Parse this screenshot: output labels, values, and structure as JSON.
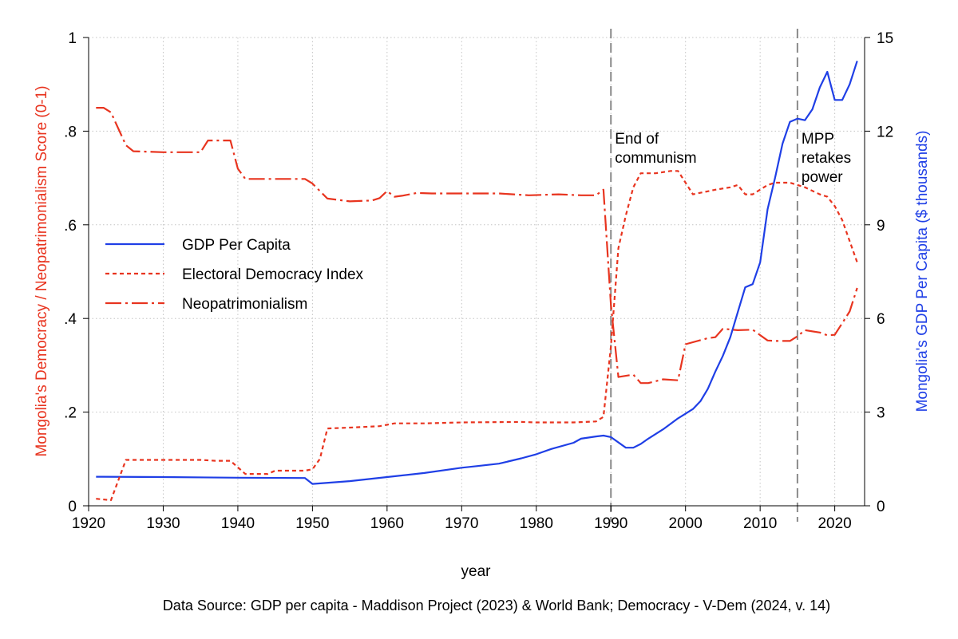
{
  "colors": {
    "gdp": "#1f3fe6",
    "democracy": "#e8341f",
    "neo": "#e8341f",
    "grid": "#c4c4c4",
    "vline": "#8a8a8a",
    "axis": "#000000"
  },
  "chart_data": {
    "type": "line",
    "xlabel": "year",
    "ylabel_left": "Mongolia's Democracy / Neopatrimonialism Score (0-1)",
    "ylabel_right": "Mongolia's GDP Per Capita ($ thousands)",
    "xlim": [
      1920,
      2024
    ],
    "ylim_left": [
      0,
      1
    ],
    "ylim_right": [
      0,
      15
    ],
    "x_ticks": [
      "1920",
      "1930",
      "1940",
      "1950",
      "1960",
      "1970",
      "1980",
      "1990",
      "2000",
      "2010",
      "2020"
    ],
    "y_left_ticks": [
      {
        "v": 0,
        "label": "0"
      },
      {
        "v": 0.2,
        "label": ".2"
      },
      {
        "v": 0.4,
        "label": ".4"
      },
      {
        "v": 0.6,
        "label": ".6"
      },
      {
        "v": 0.8,
        "label": ".8"
      },
      {
        "v": 1,
        "label": "1"
      }
    ],
    "y_right_ticks": [
      {
        "v": 0,
        "label": "0"
      },
      {
        "v": 3,
        "label": "3"
      },
      {
        "v": 6,
        "label": "6"
      },
      {
        "v": 9,
        "label": "9"
      },
      {
        "v": 12,
        "label": "12"
      },
      {
        "v": 15,
        "label": "15"
      }
    ],
    "grid": true,
    "legend_position": "middle-left",
    "annotations": [
      {
        "x": 1990,
        "lines": [
          "End of",
          "communism"
        ]
      },
      {
        "x": 2015,
        "lines": [
          "MPP",
          "retakes",
          "power"
        ]
      }
    ],
    "series": [
      {
        "name": "GDP Per Capita",
        "axis": "right",
        "style": "solid",
        "points": [
          [
            1921,
            0.93
          ],
          [
            1930,
            0.92
          ],
          [
            1940,
            0.9
          ],
          [
            1949,
            0.89
          ],
          [
            1950,
            0.7
          ],
          [
            1955,
            0.79
          ],
          [
            1960,
            0.92
          ],
          [
            1965,
            1.05
          ],
          [
            1970,
            1.22
          ],
          [
            1972,
            1.27
          ],
          [
            1975,
            1.35
          ],
          [
            1978,
            1.52
          ],
          [
            1980,
            1.65
          ],
          [
            1982,
            1.82
          ],
          [
            1985,
            2.02
          ],
          [
            1986,
            2.15
          ],
          [
            1988,
            2.22
          ],
          [
            1989,
            2.25
          ],
          [
            1990,
            2.2
          ],
          [
            1992,
            1.86
          ],
          [
            1993,
            1.86
          ],
          [
            1994,
            1.98
          ],
          [
            1995,
            2.15
          ],
          [
            1997,
            2.45
          ],
          [
            1999,
            2.8
          ],
          [
            2000,
            2.95
          ],
          [
            2001,
            3.1
          ],
          [
            2002,
            3.35
          ],
          [
            2003,
            3.75
          ],
          [
            2004,
            4.3
          ],
          [
            2005,
            4.8
          ],
          [
            2006,
            5.4
          ],
          [
            2007,
            6.2
          ],
          [
            2008,
            7.0
          ],
          [
            2009,
            7.1
          ],
          [
            2010,
            7.8
          ],
          [
            2011,
            9.5
          ],
          [
            2012,
            10.5
          ],
          [
            2013,
            11.6
          ],
          [
            2014,
            12.3
          ],
          [
            2015,
            12.4
          ],
          [
            2016,
            12.35
          ],
          [
            2017,
            12.7
          ],
          [
            2018,
            13.4
          ],
          [
            2019,
            13.9
          ],
          [
            2020,
            13.0
          ],
          [
            2021,
            13.0
          ],
          [
            2022,
            13.5
          ],
          [
            2023,
            14.25
          ]
        ]
      },
      {
        "name": "Electoral Democracy Index",
        "axis": "left",
        "style": "dashed",
        "points": [
          [
            1921,
            0.015
          ],
          [
            1923,
            0.012
          ],
          [
            1925,
            0.098
          ],
          [
            1930,
            0.098
          ],
          [
            1935,
            0.098
          ],
          [
            1937,
            0.096
          ],
          [
            1939,
            0.096
          ],
          [
            1941,
            0.068
          ],
          [
            1944,
            0.068
          ],
          [
            1945,
            0.075
          ],
          [
            1949,
            0.075
          ],
          [
            1950,
            0.078
          ],
          [
            1951,
            0.1
          ],
          [
            1952,
            0.165
          ],
          [
            1955,
            0.167
          ],
          [
            1959,
            0.17
          ],
          [
            1961,
            0.176
          ],
          [
            1965,
            0.176
          ],
          [
            1970,
            0.178
          ],
          [
            1978,
            0.179
          ],
          [
            1980,
            0.178
          ],
          [
            1985,
            0.178
          ],
          [
            1988,
            0.18
          ],
          [
            1989,
            0.19
          ],
          [
            1990,
            0.34
          ],
          [
            1991,
            0.55
          ],
          [
            1992,
            0.62
          ],
          [
            1993,
            0.68
          ],
          [
            1994,
            0.71
          ],
          [
            1996,
            0.71
          ],
          [
            1998,
            0.715
          ],
          [
            1999,
            0.715
          ],
          [
            2000,
            0.69
          ],
          [
            2001,
            0.665
          ],
          [
            2004,
            0.675
          ],
          [
            2006,
            0.68
          ],
          [
            2007,
            0.685
          ],
          [
            2008,
            0.665
          ],
          [
            2009,
            0.665
          ],
          [
            2011,
            0.685
          ],
          [
            2012,
            0.69
          ],
          [
            2014,
            0.69
          ],
          [
            2016,
            0.68
          ],
          [
            2018,
            0.665
          ],
          [
            2019,
            0.66
          ],
          [
            2020,
            0.64
          ],
          [
            2021,
            0.61
          ],
          [
            2022,
            0.565
          ],
          [
            2023,
            0.52
          ]
        ]
      },
      {
        "name": "Neopatrimonialism",
        "axis": "left",
        "style": "dashdot",
        "points": [
          [
            1921,
            0.85
          ],
          [
            1922,
            0.85
          ],
          [
            1923,
            0.84
          ],
          [
            1925,
            0.77
          ],
          [
            1926,
            0.757
          ],
          [
            1930,
            0.755
          ],
          [
            1935,
            0.755
          ],
          [
            1936,
            0.78
          ],
          [
            1939,
            0.78
          ],
          [
            1940,
            0.72
          ],
          [
            1941,
            0.698
          ],
          [
            1945,
            0.698
          ],
          [
            1949,
            0.698
          ],
          [
            1950,
            0.688
          ],
          [
            1952,
            0.656
          ],
          [
            1955,
            0.65
          ],
          [
            1958,
            0.652
          ],
          [
            1959,
            0.657
          ],
          [
            1960,
            0.672
          ],
          [
            1961,
            0.66
          ],
          [
            1962,
            0.662
          ],
          [
            1964,
            0.668
          ],
          [
            1966,
            0.667
          ],
          [
            1970,
            0.667
          ],
          [
            1975,
            0.667
          ],
          [
            1979,
            0.663
          ],
          [
            1983,
            0.665
          ],
          [
            1986,
            0.663
          ],
          [
            1988,
            0.663
          ],
          [
            1989,
            0.675
          ],
          [
            1990,
            0.43
          ],
          [
            1991,
            0.275
          ],
          [
            1993,
            0.28
          ],
          [
            1994,
            0.262
          ],
          [
            1995,
            0.262
          ],
          [
            1997,
            0.27
          ],
          [
            1999,
            0.268
          ],
          [
            2000,
            0.345
          ],
          [
            2003,
            0.358
          ],
          [
            2004,
            0.36
          ],
          [
            2005,
            0.378
          ],
          [
            2007,
            0.375
          ],
          [
            2009,
            0.376
          ],
          [
            2011,
            0.353
          ],
          [
            2012,
            0.352
          ],
          [
            2014,
            0.352
          ],
          [
            2015,
            0.362
          ],
          [
            2016,
            0.375
          ],
          [
            2018,
            0.37
          ],
          [
            2019,
            0.364
          ],
          [
            2020,
            0.365
          ],
          [
            2021,
            0.39
          ],
          [
            2022,
            0.415
          ],
          [
            2023,
            0.465
          ]
        ]
      }
    ]
  },
  "source_note": "Data Source: GDP per capita - Maddison Project (2023) & World Bank; Democracy - V-Dem (2024, v. 14)"
}
